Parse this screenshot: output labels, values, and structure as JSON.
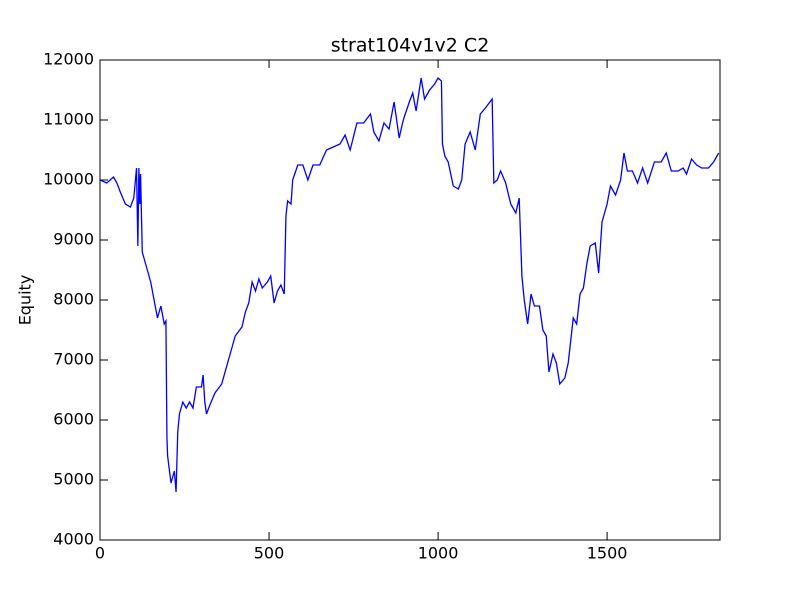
{
  "chart_data": {
    "type": "line",
    "title": "strat104v1v2 C2",
    "y_label": "Equity",
    "x": [
      0,
      20,
      40,
      50,
      60,
      75,
      90,
      100,
      108,
      112,
      115,
      118,
      120,
      125,
      130,
      140,
      150,
      160,
      170,
      180,
      190,
      195,
      198,
      200,
      210,
      220,
      225,
      230,
      235,
      245,
      255,
      265,
      275,
      285,
      300,
      305,
      310,
      315,
      325,
      340,
      360,
      380,
      400,
      420,
      430,
      440,
      450,
      460,
      470,
      480,
      495,
      505,
      515,
      525,
      535,
      545,
      550,
      555,
      565,
      570,
      585,
      600,
      615,
      630,
      650,
      670,
      690,
      710,
      725,
      740,
      760,
      780,
      800,
      810,
      825,
      840,
      855,
      870,
      885,
      895,
      900,
      915,
      925,
      935,
      950,
      960,
      975,
      990,
      1000,
      1010,
      1013,
      1020,
      1030,
      1045,
      1060,
      1070,
      1080,
      1095,
      1110,
      1125,
      1140,
      1160,
      1165,
      1175,
      1185,
      1200,
      1215,
      1230,
      1240,
      1248,
      1255,
      1265,
      1275,
      1285,
      1300,
      1310,
      1320,
      1328,
      1340,
      1350,
      1360,
      1375,
      1385,
      1400,
      1410,
      1420,
      1430,
      1440,
      1450,
      1465,
      1475,
      1485,
      1500,
      1510,
      1525,
      1540,
      1550,
      1560,
      1575,
      1590,
      1605,
      1620,
      1640,
      1660,
      1675,
      1690,
      1710,
      1725,
      1735,
      1750,
      1765,
      1780,
      1800,
      1815,
      1830
    ],
    "series": [
      {
        "name": "Equity",
        "color": "#0000ff",
        "values": [
          10000,
          9950,
          10050,
          9950,
          9800,
          9600,
          9550,
          9700,
          10200,
          8900,
          10200,
          9600,
          10100,
          8800,
          8700,
          8500,
          8300,
          8000,
          7700,
          7900,
          7600,
          7650,
          5700,
          5400,
          4950,
          5150,
          4800,
          5800,
          6100,
          6300,
          6200,
          6300,
          6200,
          6550,
          6550,
          6750,
          6300,
          6100,
          6250,
          6450,
          6600,
          7000,
          7400,
          7550,
          7800,
          7950,
          8300,
          8150,
          8350,
          8200,
          8300,
          8400,
          7950,
          8150,
          8250,
          8100,
          9400,
          9650,
          9600,
          10000,
          10250,
          10250,
          10000,
          10250,
          10250,
          10500,
          10550,
          10600,
          10750,
          10500,
          10950,
          10950,
          11100,
          10800,
          10650,
          10950,
          10850,
          11300,
          10700,
          10950,
          11050,
          11300,
          11450,
          11150,
          11700,
          11350,
          11500,
          11600,
          11700,
          11650,
          10600,
          10400,
          10300,
          9900,
          9850,
          10000,
          10600,
          10800,
          10500,
          11100,
          11200,
          11350,
          9950,
          10000,
          10150,
          9950,
          9600,
          9450,
          9700,
          8400,
          8000,
          7600,
          8100,
          7900,
          7900,
          7500,
          7400,
          6800,
          7100,
          6950,
          6600,
          6700,
          6950,
          7700,
          7600,
          8100,
          8200,
          8600,
          8900,
          8950,
          8450,
          9300,
          9600,
          9900,
          9750,
          10000,
          10450,
          10150,
          10150,
          9950,
          10200,
          9950,
          10300,
          10300,
          10450,
          10150,
          10150,
          10200,
          10100,
          10350,
          10250,
          10200,
          10200,
          10300,
          10450
        ]
      }
    ],
    "xlim": [
      0,
      1834
    ],
    "xticks": [
      0,
      500,
      1000,
      1500
    ],
    "ylim": [
      4000,
      12000
    ],
    "yticks": [
      4000,
      5000,
      6000,
      7000,
      8000,
      9000,
      10000,
      11000,
      12000
    ],
    "grid": false
  }
}
